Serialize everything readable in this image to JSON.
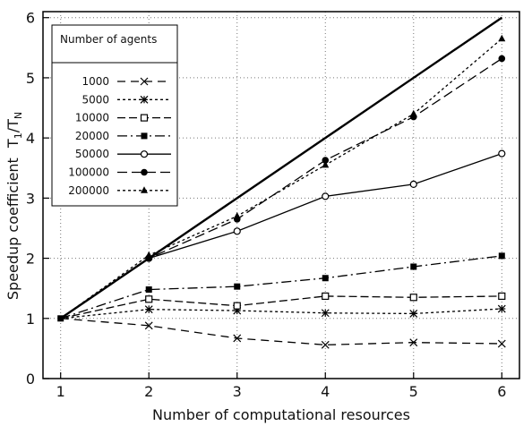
{
  "chart_data": {
    "type": "line",
    "title": "",
    "xlabel": "Number of computational resources",
    "ylabel_main": "Speedup coefficient",
    "ylabel_frac_num": "T",
    "ylabel_frac_num_sub": "1",
    "ylabel_frac_sep": "/T",
    "ylabel_frac_den_sub": "N",
    "xlim": [
      0.8,
      6.2
    ],
    "ylim": [
      0,
      6.1
    ],
    "xticks": [
      "1",
      "2",
      "3",
      "4",
      "5",
      "6"
    ],
    "yticks": [
      "0",
      "1",
      "2",
      "3",
      "4",
      "5",
      "6"
    ],
    "grid": true,
    "legend": {
      "title": "Number of agents",
      "placement": "top-left"
    },
    "x": [
      1,
      2,
      3,
      4,
      5,
      6
    ],
    "ideal": {
      "values": [
        1,
        2,
        3,
        4,
        5,
        6
      ]
    },
    "series": [
      {
        "name": "1000",
        "values": [
          1.0,
          0.88,
          0.67,
          0.56,
          0.6,
          0.58
        ],
        "marker": "x",
        "dash": "9,6"
      },
      {
        "name": "5000",
        "values": [
          1.0,
          1.15,
          1.13,
          1.09,
          1.08,
          1.16
        ],
        "marker": "star",
        "dash": "3,3"
      },
      {
        "name": "10000",
        "values": [
          1.0,
          1.32,
          1.21,
          1.37,
          1.35,
          1.37
        ],
        "marker": "square-open",
        "dash": "9,4"
      },
      {
        "name": "20000",
        "values": [
          1.0,
          1.48,
          1.53,
          1.67,
          1.86,
          2.04
        ],
        "marker": "square",
        "dash": "11,4,2,4"
      },
      {
        "name": "50000",
        "values": [
          1.0,
          2.0,
          2.45,
          3.03,
          3.23,
          3.74
        ],
        "marker": "circle-open",
        "dash": ""
      },
      {
        "name": "100000",
        "values": [
          1.0,
          2.0,
          2.65,
          3.63,
          4.35,
          5.32
        ],
        "marker": "circle",
        "dash": "11,5"
      },
      {
        "name": "200000",
        "values": [
          1.0,
          2.05,
          2.7,
          3.55,
          4.4,
          5.65
        ],
        "marker": "triangle",
        "dash": "3,3"
      }
    ]
  }
}
